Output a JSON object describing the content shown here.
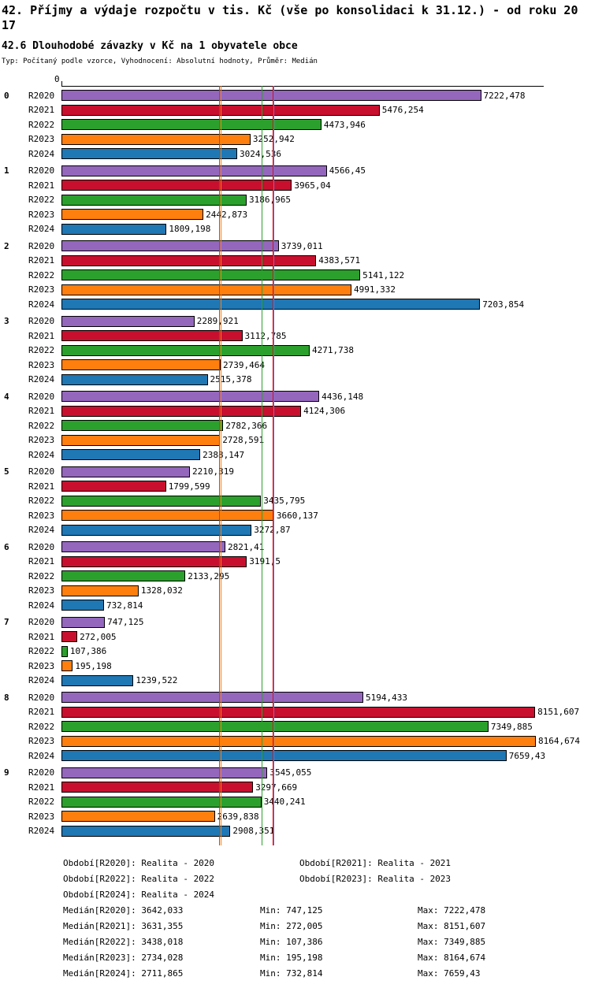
{
  "header": {
    "title_line1": "42. Příjmy a výdaje rozpočtu v tis. Kč (vše po konsolidaci k 31.12.) - od roku 20",
    "title_line2": "17",
    "subtitle": "42.6 Dlouhodobé závazky v Kč na 1 obyvatele obce",
    "meta": "Typ: Počítaný podle vzorce, Vyhodnocení: Absolutní hodnoty, Průměr: Medián"
  },
  "axis": {
    "origin_label": "0"
  },
  "chart_data": {
    "type": "bar",
    "orientation": "horizontal",
    "title": "42.6 Dlouhodobé závazky v Kč na 1 obyvatele obce",
    "categories": [
      "0",
      "1",
      "2",
      "3",
      "4",
      "5",
      "6",
      "7",
      "8",
      "9"
    ],
    "xlim": [
      0,
      8300
    ],
    "grid": false,
    "legend_position": "bottom",
    "series": [
      {
        "name": "R2020",
        "color": "#9467bd",
        "median": 3642.033,
        "values": [
          7222.478,
          4566.45,
          3739.011,
          2289.921,
          4436.148,
          2210.319,
          2821.41,
          747.125,
          5194.433,
          3545.055
        ],
        "labels": [
          "7222,478",
          "4566,45",
          "3739,011",
          "2289,921",
          "4436,148",
          "2210,319",
          "2821,41",
          "747,125",
          "5194,433",
          "3545,055"
        ]
      },
      {
        "name": "R2021",
        "color": "#c8102e",
        "median": 3631.355,
        "values": [
          5476.254,
          3965.04,
          4383.571,
          3112.785,
          4124.306,
          1799.599,
          3191.5,
          272.005,
          8151.607,
          3297.669
        ],
        "labels": [
          "5476,254",
          "3965,04",
          "4383,571",
          "3112,785",
          "4124,306",
          "1799,599",
          "3191,5",
          "272,005",
          "8151,607",
          "3297,669"
        ]
      },
      {
        "name": "R2022",
        "color": "#2ca02c",
        "median": 3438.018,
        "values": [
          4473.946,
          3186.965,
          5141.122,
          4271.738,
          2782.366,
          3435.795,
          2133.295,
          107.386,
          7349.885,
          3440.241
        ],
        "labels": [
          "4473,946",
          "3186,965",
          "5141,122",
          "4271,738",
          "2782,366",
          "3435,795",
          "2133,295",
          "107,386",
          "7349,885",
          "3440,241"
        ]
      },
      {
        "name": "R2023",
        "color": "#ff7f0e",
        "median": 2734.028,
        "values": [
          3252.942,
          2442.873,
          4991.332,
          2739.464,
          2728.591,
          3660.137,
          1328.032,
          195.198,
          8164.674,
          2639.838
        ],
        "labels": [
          "3252,942",
          "2442,873",
          "4991,332",
          "2739,464",
          "2728,591",
          "3660,137",
          "1328,032",
          "195,198",
          "8164,674",
          "2639,838"
        ]
      },
      {
        "name": "R2024",
        "color": "#1f77b4",
        "median": 2711.865,
        "values": [
          3024.536,
          1809.198,
          7203.854,
          2515.378,
          2388.147,
          3272.87,
          732.814,
          1239.522,
          7659.43,
          2908.351
        ],
        "labels": [
          "3024,536",
          "1809,198",
          "7203,854",
          "2515,378",
          "2388,147",
          "3272,87",
          "732,814",
          "1239,522",
          "7659,43",
          "2908,351"
        ]
      }
    ]
  },
  "legend": {
    "periods": [
      "Období[R2020]: Realita - 2020",
      "Období[R2021]: Realita - 2021",
      "Období[R2022]: Realita - 2022",
      "Období[R2023]: Realita - 2023",
      "Období[R2024]: Realita - 2024"
    ],
    "stats": [
      {
        "median": "Medián[R2020]: 3642,033",
        "min": "Min: 747,125",
        "max": "Max: 7222,478"
      },
      {
        "median": "Medián[R2021]: 3631,355",
        "min": "Min: 272,005",
        "max": "Max: 8151,607"
      },
      {
        "median": "Medián[R2022]: 3438,018",
        "min": "Min: 107,386",
        "max": "Max: 7349,885"
      },
      {
        "median": "Medián[R2023]: 2734,028",
        "min": "Min: 195,198",
        "max": "Max: 8164,674"
      },
      {
        "median": "Medián[R2024]: 2711,865",
        "min": "Min: 732,814",
        "max": "Max: 7659,43"
      }
    ]
  }
}
